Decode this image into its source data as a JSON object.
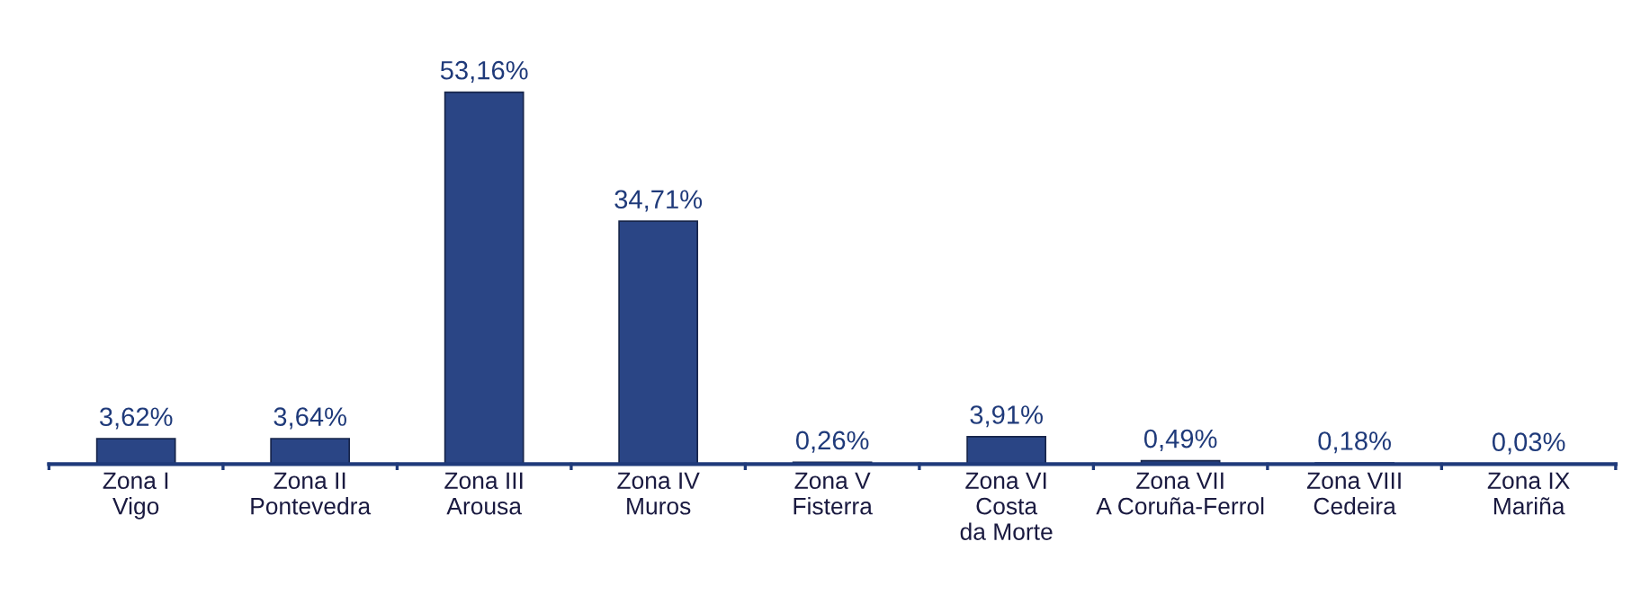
{
  "chart_data": {
    "type": "bar",
    "categories": [
      "Zona I\nVigo",
      "Zona II\nPontevedra",
      "Zona III\nArousa",
      "Zona IV\nMuros",
      "Zona V\nFisterra",
      "Zona VI\nCosta\nda Morte",
      "Zona VII\nA Coruña-Ferrol",
      "Zona VIII\nCedeira",
      "Zona IX\nMariña"
    ],
    "values": [
      3.62,
      3.64,
      53.16,
      34.71,
      0.26,
      3.91,
      0.49,
      0.18,
      0.03
    ],
    "value_labels": [
      "3,62%",
      "3,64%",
      "53,16%",
      "34,71%",
      "0,26%",
      "3,91%",
      "0,49%",
      "0,18%",
      "0,03%"
    ],
    "color": "#2a4585",
    "grid": false,
    "legend": false
  }
}
